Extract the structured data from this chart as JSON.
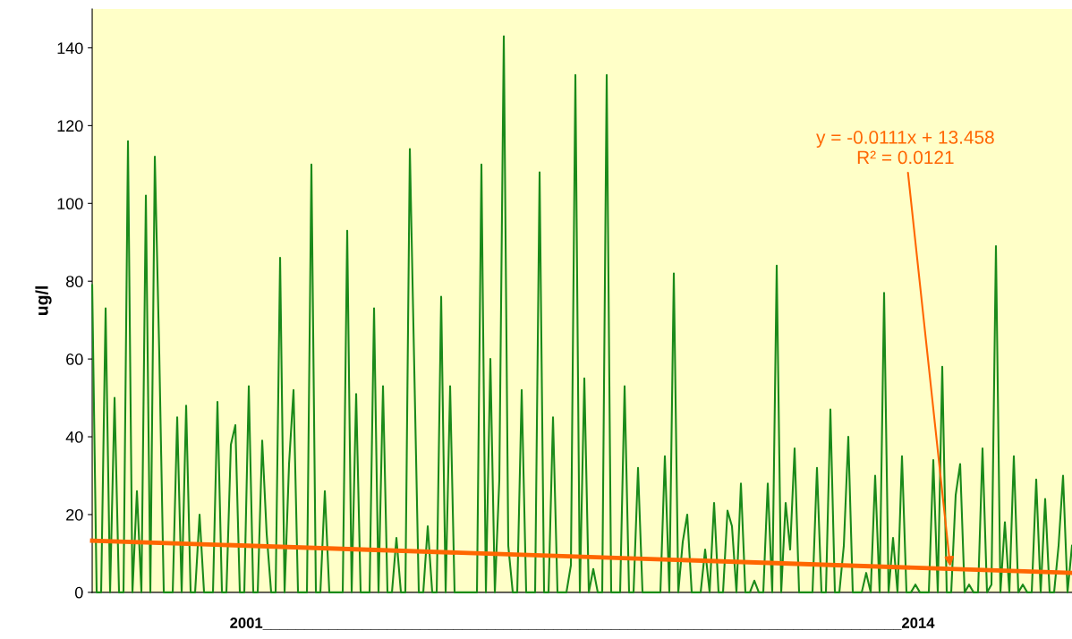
{
  "chart_data": {
    "type": "line",
    "ylabel": "ug/l",
    "xlabel": "2001_____________________________________________________________________________2014",
    "categories": [
      null,
      null,
      null,
      null,
      null,
      null,
      null,
      null,
      null,
      null,
      null,
      null,
      null,
      null,
      null,
      null,
      null,
      null,
      null,
      null,
      null,
      null,
      null,
      null,
      null,
      null,
      null,
      null,
      null,
      null,
      null,
      null,
      null,
      null,
      null,
      null,
      null,
      null,
      null,
      null,
      null,
      null,
      null,
      null,
      null,
      null,
      null,
      null,
      null,
      null,
      null,
      null,
      null,
      null,
      null,
      null,
      null,
      null,
      null,
      null,
      null,
      null,
      null,
      null,
      null,
      null,
      null,
      null,
      null,
      null,
      null,
      null,
      null,
      null,
      null,
      null,
      null,
      null,
      null,
      null,
      null,
      null,
      null,
      null,
      null,
      null,
      null,
      null,
      null,
      null,
      null,
      null,
      null,
      null,
      null,
      null,
      null,
      null,
      null,
      null,
      null,
      null,
      null,
      null,
      null,
      null,
      null,
      null,
      null,
      null,
      null,
      null,
      null,
      null,
      null,
      null,
      null,
      null,
      null,
      null,
      null,
      null,
      null,
      null,
      null,
      null,
      null,
      null,
      null,
      null,
      null,
      null,
      null,
      null,
      null,
      null,
      null,
      null,
      null,
      null,
      null,
      null,
      null,
      null,
      null,
      null,
      null,
      null,
      null,
      null,
      null,
      null,
      null,
      null,
      null,
      null,
      null,
      null,
      null,
      null,
      null,
      null,
      null,
      null,
      null,
      null,
      null,
      null,
      null,
      null,
      null,
      null,
      null,
      null,
      null,
      null,
      null,
      null,
      null,
      null,
      null,
      null,
      null,
      null,
      null,
      null,
      null,
      null,
      null,
      null,
      null,
      null,
      null,
      null,
      null,
      null,
      null,
      null,
      null,
      null,
      null,
      null,
      null,
      null,
      null,
      null,
      null,
      null,
      null,
      null,
      null,
      null,
      null,
      null,
      null,
      null,
      null,
      null,
      null,
      null
    ],
    "series": [
      {
        "color": "#1a8a1a",
        "values": [
          79,
          0,
          0,
          73,
          0,
          50,
          0,
          0,
          116,
          0,
          26,
          0,
          102,
          0,
          112,
          61,
          0,
          0,
          0,
          45,
          0,
          48,
          0,
          0,
          20,
          0,
          0,
          0,
          49,
          0,
          0,
          38,
          43,
          0,
          0,
          53,
          0,
          0,
          39,
          15,
          0,
          0,
          86,
          0,
          33,
          52,
          0,
          0,
          0,
          110,
          0,
          0,
          26,
          0,
          0,
          0,
          0,
          93,
          0,
          51,
          0,
          0,
          0,
          73,
          0,
          53,
          0,
          0,
          14,
          0,
          0,
          114,
          57,
          0,
          0,
          17,
          0,
          0,
          76,
          0,
          53,
          0,
          0,
          0,
          0,
          0,
          0,
          110,
          0,
          60,
          0,
          29,
          143,
          12,
          0,
          0,
          52,
          0,
          0,
          0,
          108,
          0,
          0,
          45,
          0,
          0,
          0,
          7,
          133,
          0,
          55,
          0,
          6,
          0,
          0,
          133,
          0,
          0,
          0,
          53,
          0,
          0,
          32,
          0,
          0,
          0,
          0,
          0,
          35,
          0,
          82,
          0,
          13,
          20,
          0,
          0,
          0,
          11,
          0,
          23,
          0,
          0,
          21,
          17,
          0,
          28,
          0,
          0,
          3,
          0,
          0,
          28,
          0,
          84,
          0,
          23,
          11,
          37,
          0,
          0,
          0,
          0,
          32,
          0,
          0,
          47,
          0,
          0,
          12,
          40,
          0,
          0,
          0,
          5,
          0,
          30,
          0,
          77,
          0,
          14,
          0,
          35,
          0,
          0,
          2,
          0,
          0,
          0,
          34,
          0,
          58,
          0,
          0,
          25,
          33,
          0,
          2,
          0,
          0,
          37,
          0,
          2,
          89,
          0,
          18,
          0,
          35,
          0,
          2,
          0,
          0,
          29,
          0,
          24,
          0,
          0,
          12,
          30,
          0,
          12
        ]
      },
      {
        "type": "line",
        "color": "#ff6600",
        "values": [
          13.3,
          null,
          null,
          null,
          null,
          null,
          null,
          null,
          null,
          null,
          null,
          null,
          null,
          null,
          null,
          null,
          null,
          null,
          null,
          null,
          null,
          null,
          null,
          null,
          null,
          null,
          null,
          null,
          null,
          null,
          null,
          null,
          null,
          null,
          null,
          null,
          null,
          null,
          null,
          null,
          null,
          null,
          null,
          null,
          null,
          null,
          null,
          null,
          null,
          null,
          null,
          null,
          null,
          null,
          null,
          null,
          null,
          null,
          null,
          null,
          null,
          null,
          null,
          null,
          null,
          null,
          null,
          null,
          null,
          null,
          null,
          null,
          null,
          null,
          null,
          null,
          null,
          null,
          null,
          null,
          null,
          null,
          null,
          null,
          null,
          null,
          null,
          null,
          null,
          null,
          null,
          null,
          null,
          null,
          null,
          null,
          null,
          null,
          null,
          null,
          null,
          null,
          null,
          null,
          null,
          null,
          null,
          null,
          null,
          null,
          null,
          null,
          null,
          null,
          null,
          null,
          null,
          null,
          null,
          null,
          null,
          null,
          null,
          null,
          null,
          null,
          null,
          null,
          null,
          null,
          null,
          null,
          null,
          null,
          null,
          null,
          null,
          null,
          null,
          null,
          null,
          null,
          null,
          null,
          null,
          null,
          null,
          null,
          null,
          null,
          null,
          null,
          null,
          null,
          null,
          null,
          null,
          null,
          null,
          null,
          null,
          null,
          null,
          null,
          null,
          null,
          null,
          null,
          null,
          null,
          null,
          null,
          null,
          null,
          null,
          null,
          null,
          null,
          null,
          null,
          null,
          null,
          null,
          null,
          null,
          null,
          null,
          null,
          null,
          null,
          null,
          null,
          null,
          null,
          null,
          null,
          null,
          null,
          null,
          null,
          null,
          null,
          null,
          null,
          null,
          null,
          null,
          null,
          null,
          null,
          null,
          null,
          null,
          null,
          null,
          null,
          null,
          null,
          null,
          5
        ]
      }
    ],
    "annotations": [
      "y = -0.0111x + 13.458\nR² = 0.0121"
    ],
    "ylim": [
      0,
      150
    ],
    "yticks": [
      0,
      20,
      40,
      60,
      80,
      100,
      120,
      140
    ],
    "tick_labels": "y",
    "grid": false,
    "legend": false
  }
}
